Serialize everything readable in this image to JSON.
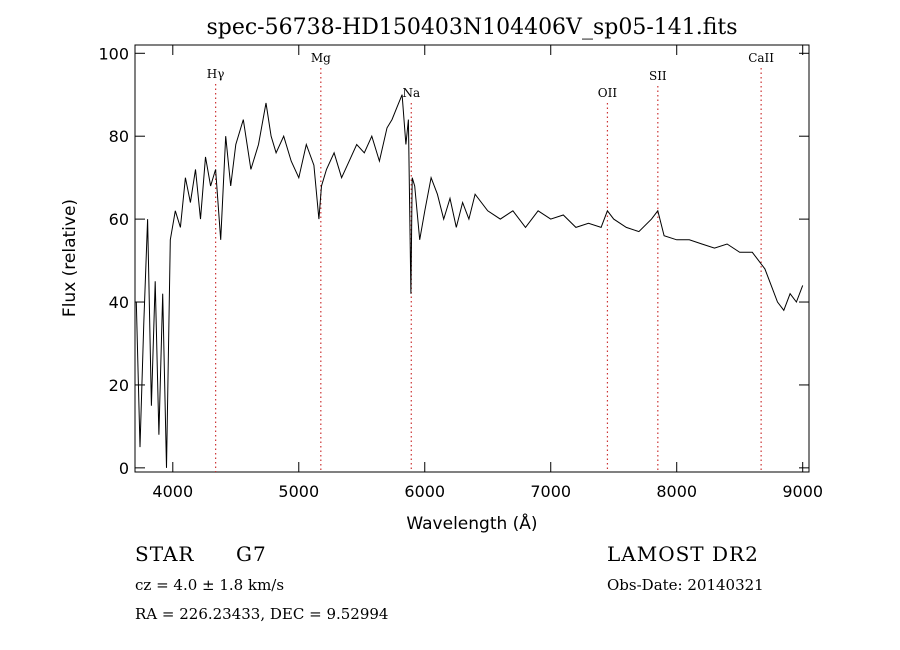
{
  "chart_data": {
    "type": "line",
    "title": "spec-56738-HD150403N104406V_sp05-141.fits",
    "xlabel": "Wavelength (Å)",
    "ylabel": "Flux (relative)",
    "xlim": [
      3700,
      9050
    ],
    "ylim": [
      -1,
      102
    ],
    "xticks": [
      4000,
      5000,
      6000,
      7000,
      8000,
      9000
    ],
    "yticks": [
      0,
      20,
      40,
      60,
      80,
      100
    ],
    "grid": false,
    "line_color": "#000000",
    "line_markers": [
      {
        "label": "Hγ",
        "x": 4340
      },
      {
        "label": "Mg",
        "x": 5175
      },
      {
        "label": "Na",
        "x": 5893
      },
      {
        "label": "OII",
        "x": 7450
      },
      {
        "label": "SII",
        "x": 7850
      },
      {
        "label": "CaII",
        "x": 8670
      }
    ],
    "series": [
      {
        "x": [
          3710,
          3740,
          3770,
          3800,
          3830,
          3860,
          3890,
          3920,
          3950,
          3980,
          4020,
          4060,
          4100,
          4140,
          4180,
          4220,
          4260,
          4300,
          4340,
          4380,
          4420,
          4460,
          4500,
          4560,
          4620,
          4680,
          4740,
          4780,
          4820,
          4880,
          4940,
          5000,
          5060,
          5120,
          5160,
          5180,
          5220,
          5280,
          5340,
          5400,
          5460,
          5520,
          5580,
          5640,
          5700,
          5740,
          5780,
          5820,
          5850,
          5870,
          5890,
          5900,
          5920,
          5960,
          6000,
          6050,
          6100,
          6150,
          6200,
          6250,
          6300,
          6350,
          6400,
          6500,
          6600,
          6700,
          6800,
          6900,
          7000,
          7100,
          7200,
          7300,
          7400,
          7450,
          7500,
          7600,
          7700,
          7800,
          7850,
          7900,
          8000,
          8100,
          8200,
          8300,
          8400,
          8500,
          8600,
          8650,
          8700,
          8750,
          8800,
          8850,
          8900,
          8950,
          9000
        ],
        "y": [
          40,
          5,
          35,
          60,
          15,
          45,
          8,
          42,
          0,
          55,
          62,
          58,
          70,
          64,
          72,
          60,
          75,
          68,
          72,
          55,
          80,
          68,
          78,
          84,
          72,
          78,
          88,
          80,
          76,
          80,
          74,
          70,
          78,
          73,
          60,
          68,
          72,
          76,
          70,
          74,
          78,
          76,
          80,
          74,
          82,
          84,
          87,
          90,
          78,
          84,
          42,
          70,
          68,
          55,
          62,
          70,
          66,
          60,
          65,
          58,
          64,
          60,
          66,
          62,
          60,
          62,
          58,
          62,
          60,
          61,
          58,
          59,
          58,
          62,
          60,
          58,
          57,
          60,
          62,
          56,
          55,
          55,
          54,
          53,
          54,
          52,
          52,
          50,
          48,
          44,
          40,
          38,
          42,
          40,
          44
        ]
      }
    ]
  },
  "info": {
    "object_type": "STAR",
    "subclass": "G7",
    "survey": "LAMOST DR2",
    "cz": "cz = 4.0 ± 1.8 km/s",
    "obs_date": "Obs-Date: 20140321",
    "coords": "RA = 226.23433, DEC =    9.52994"
  }
}
